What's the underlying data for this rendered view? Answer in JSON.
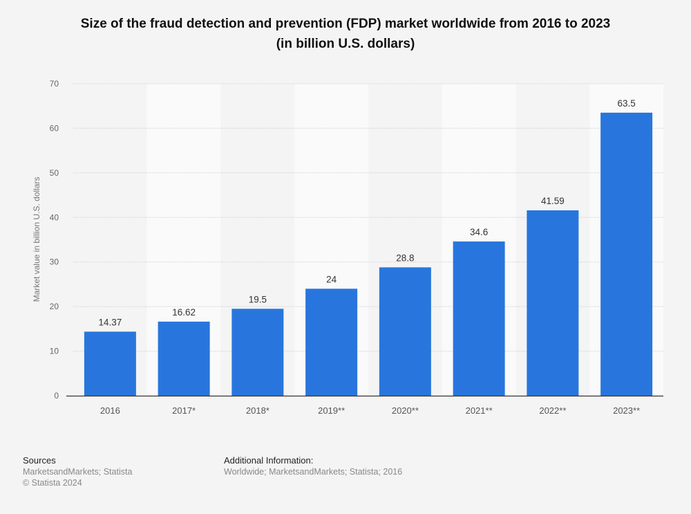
{
  "chart_data": {
    "type": "bar",
    "title": "Size of the fraud detection and prevention (FDP) market worldwide from 2016 to 2023",
    "subtitle": "(in billion U.S. dollars)",
    "categories": [
      "2016",
      "2017*",
      "2018*",
      "2019**",
      "2020**",
      "2021**",
      "2022**",
      "2023**"
    ],
    "values": [
      14.37,
      16.62,
      19.5,
      24,
      28.8,
      34.6,
      41.59,
      63.5
    ],
    "value_labels": [
      "14.37",
      "16.62",
      "19.5",
      "24",
      "28.8",
      "34.6",
      "41.59",
      "63.5"
    ],
    "xlabel": "",
    "ylabel": "Market value in billion U.S. dollars",
    "ylim": [
      0,
      70
    ],
    "yticks": [
      0,
      10,
      20,
      30,
      40,
      50,
      60,
      70
    ],
    "grid": true,
    "bar_color": "#2876dd"
  },
  "footer": {
    "sources_heading": "Sources",
    "sources_text": "MarketsandMarkets; Statista",
    "copyright": "© Statista 2024",
    "additional_heading": "Additional Information:",
    "additional_text": "Worldwide; MarketsandMarkets; Statista; 2016"
  }
}
